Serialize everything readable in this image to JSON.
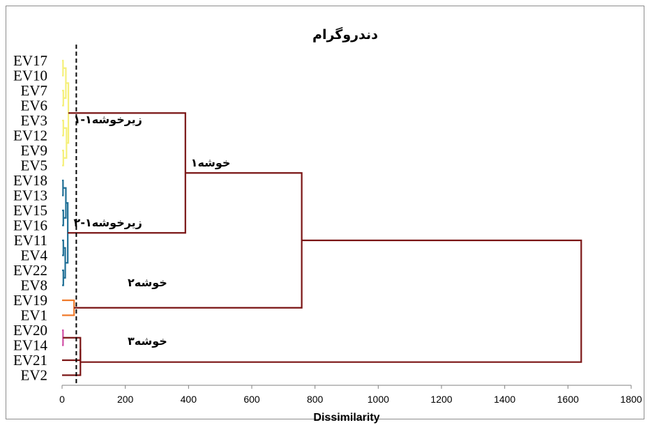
{
  "chart_data": {
    "type": "dendrogram",
    "title": "دندروگرام",
    "xlabel": "Dissimilarity",
    "xlim": [
      0,
      1800
    ],
    "xticks": [
      0,
      200,
      400,
      600,
      800,
      1000,
      1200,
      1400,
      1600,
      1800
    ],
    "leaves": [
      "EV17",
      "EV10",
      "EV7",
      "EV6",
      "EV3",
      "EV12",
      "EV9",
      "EV5",
      "EV18",
      "EV13",
      "EV15",
      "EV16",
      "EV11",
      "EV4",
      "EV22",
      "EV8",
      "EV19",
      "EV1",
      "EV20",
      "EV14",
      "EV21",
      "EV2"
    ],
    "cut_line": 45,
    "colors": {
      "subcluster_1_1": "#f5f07a",
      "subcluster_1_2": "#1f6f96",
      "cluster_2": "#f07a2a",
      "cluster_3_inner": "#d14fa6",
      "main": "#7a1414",
      "cut": "#000000"
    },
    "merges": [
      {
        "id": "y1",
        "a": "EV17",
        "b": "EV10",
        "height": 3,
        "color": "subcluster_1_1"
      },
      {
        "id": "y2",
        "a": "EV7",
        "b": "EV6",
        "height": 4,
        "color": "subcluster_1_1"
      },
      {
        "id": "y3",
        "a": "EV3",
        "b": "EV12",
        "height": 4,
        "color": "subcluster_1_1"
      },
      {
        "id": "y4",
        "a": "EV9",
        "b": "EV5",
        "height": 4,
        "color": "subcluster_1_1"
      },
      {
        "id": "y5",
        "a": "y1",
        "b": "y2",
        "height": 12,
        "color": "subcluster_1_1"
      },
      {
        "id": "y6",
        "a": "y3",
        "b": "y4",
        "height": 14,
        "color": "subcluster_1_1"
      },
      {
        "id": "y7",
        "a": "y5",
        "b": "y6",
        "height": 20,
        "color": "subcluster_1_1"
      },
      {
        "id": "b1",
        "a": "EV18",
        "b": "EV13",
        "height": 3,
        "color": "subcluster_1_2"
      },
      {
        "id": "b2",
        "a": "EV15",
        "b": "EV16",
        "height": 4,
        "color": "subcluster_1_2"
      },
      {
        "id": "b3",
        "a": "EV11",
        "b": "EV4",
        "height": 4,
        "color": "subcluster_1_2"
      },
      {
        "id": "b4",
        "a": "EV22",
        "b": "EV8",
        "height": 4,
        "color": "subcluster_1_2"
      },
      {
        "id": "b5",
        "a": "b1",
        "b": "b2",
        "height": 12,
        "color": "subcluster_1_2"
      },
      {
        "id": "b6",
        "a": "b3",
        "b": "b4",
        "height": 10,
        "color": "subcluster_1_2"
      },
      {
        "id": "b7",
        "a": "b5",
        "b": "b6",
        "height": 18,
        "color": "subcluster_1_2"
      },
      {
        "id": "o1",
        "a": "EV19",
        "b": "EV1",
        "height": 38,
        "color": "cluster_2"
      },
      {
        "id": "p1",
        "a": "EV20",
        "b": "EV14",
        "height": 3,
        "color": "cluster_3_inner"
      },
      {
        "id": "p2",
        "a": "p1",
        "b": "EV21",
        "height": 58,
        "color": "main"
      },
      {
        "id": "p3",
        "a": "p2",
        "b": "EV2",
        "height": 58,
        "color": "main"
      },
      {
        "id": "m1",
        "a": "y7",
        "b": "b7",
        "height": 390,
        "color": "main"
      },
      {
        "id": "m2",
        "a": "m1",
        "b": "o1",
        "height": 758,
        "color": "main"
      },
      {
        "id": "m3",
        "a": "m2",
        "b": "p3",
        "height": 1642,
        "color": "main"
      }
    ],
    "annotations": [
      {
        "text": "زیرخوشه۱-۱",
        "x": 145,
        "y_leaf": 3.9
      },
      {
        "text": "خوشه۱",
        "x": 470,
        "y_leaf": 6.8
      },
      {
        "text": "زیرخوشه۱-۲",
        "x": 145,
        "y_leaf": 10.8
      },
      {
        "text": "خوشه۲",
        "x": 270,
        "y_leaf": 14.8
      },
      {
        "text": "خوشه۳",
        "x": 270,
        "y_leaf": 18.7
      }
    ]
  }
}
